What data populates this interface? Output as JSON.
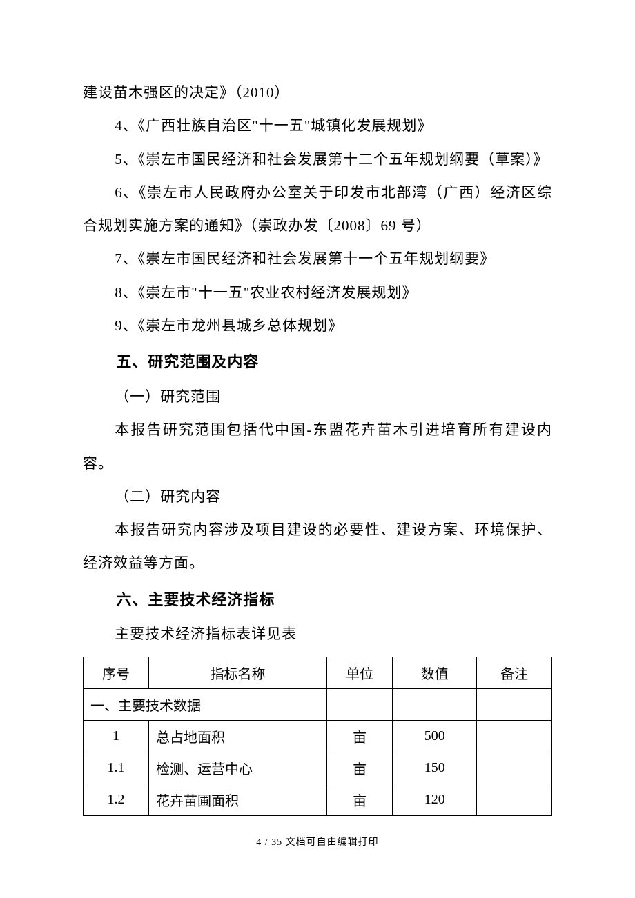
{
  "paragraphs": {
    "p0": "建设苗木强区的决定》（2010）",
    "p1": "4、《广西壮族自治区\"十一五\"城镇化发展规划》",
    "p2": "5、《崇左市国民经济和社会发展第十二个五年规划纲要（草案）》",
    "p3": "6、《崇左市人民政府办公室关于印发市北部湾（广西）经济区综合规划实施方案的通知》（崇政办发〔2008〕69 号）",
    "p4": "7、《崇左市国民经济和社会发展第十一个五年规划纲要》",
    "p5": "8、《崇左市\"十一五\"农业农村经济发展规划》",
    "p6": "9、《崇左市龙州县城乡总体规划》",
    "h5": "五、研究范围及内容",
    "p7": "（一）研究范围",
    "p8": "本报告研究范围包括代中国-东盟花卉苗木引进培育所有建设内容。",
    "p9": "（二）研究内容",
    "p10": "本报告研究内容涉及项目建设的必要性、建设方案、环境保护、经济效益等方面。",
    "h6": "六、主要技术经济指标",
    "p11": "主要技术经济指标表详见表"
  },
  "table": {
    "headers": {
      "seq": "序号",
      "name": "指标名称",
      "unit": "单位",
      "value": "数值",
      "note": "备注"
    },
    "section_label": "一、主要技术数据",
    "rows": [
      {
        "seq": "1",
        "name": "总占地面积",
        "unit": "亩",
        "value": "500",
        "note": ""
      },
      {
        "seq": "1.1",
        "name": "检测、运营中心",
        "unit": "亩",
        "value": "150",
        "note": ""
      },
      {
        "seq": "1.2",
        "name": "花卉苗圃面积",
        "unit": "亩",
        "value": "120",
        "note": ""
      }
    ]
  },
  "footer": "4 / 35 文档可自由编辑打印"
}
